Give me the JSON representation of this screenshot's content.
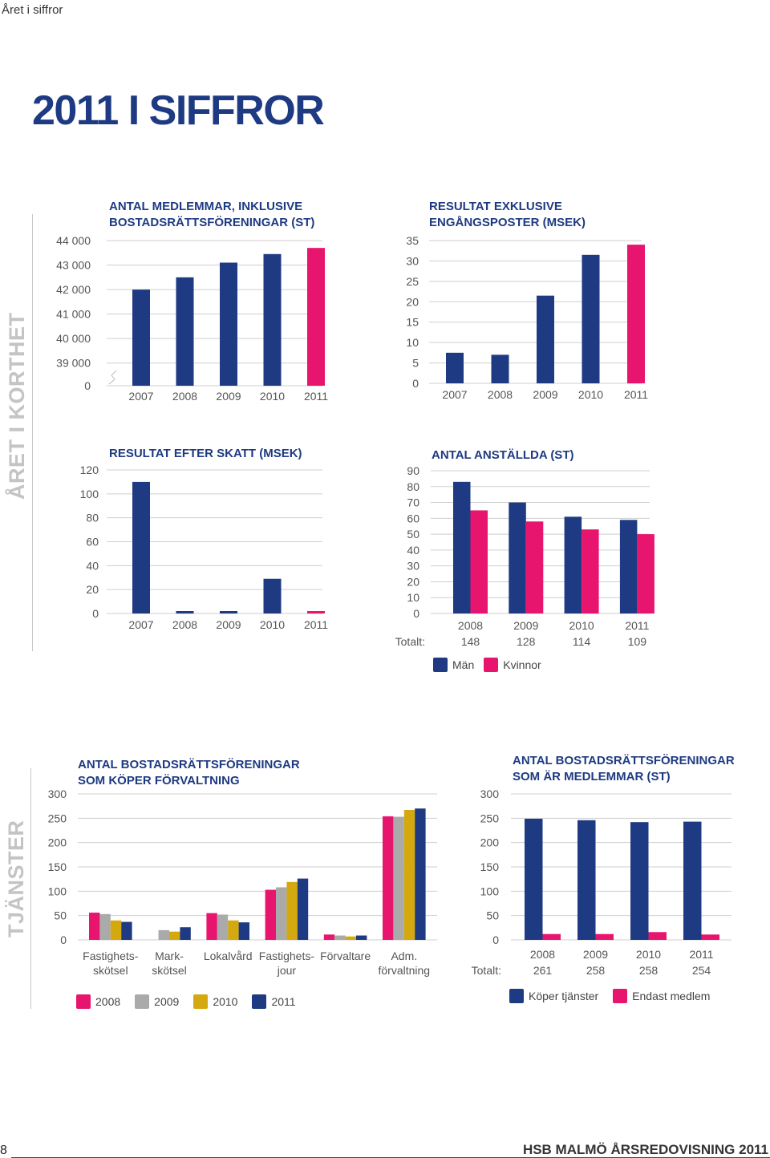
{
  "header": {
    "section": "Året i siffror",
    "title": "2011 I SIFFROR"
  },
  "side_labels": {
    "upper": "ÅRET I KORTHET",
    "lower": "TJÄNSTER"
  },
  "footer": {
    "page_number": "8",
    "text": "HSB MALMÖ ÅRSREDOVISNING 2011"
  },
  "colors": {
    "navy": "#1e3a82",
    "pink": "#e8156e",
    "grey": "#aaaaaa",
    "gold": "#d4a80f"
  },
  "chart_data": [
    {
      "id": "members",
      "type": "bar",
      "title": "ANTAL MEDLEMMAR, INKLUSIVE BOSTADSRÄTTSFÖRENINGAR (ST)",
      "categories": [
        "2007",
        "2008",
        "2009",
        "2010",
        "2011"
      ],
      "values": [
        42000,
        42500,
        43100,
        43450,
        43700
      ],
      "axis_break": true,
      "ylim": [
        38500,
        44000
      ],
      "yticks": [
        39000,
        40000,
        41000,
        42000,
        43000,
        44000
      ],
      "ytick_labels": [
        "0",
        "39 000",
        "40 000",
        "41 000",
        "42 000",
        "43 000",
        "44 000"
      ],
      "highlight_last": true
    },
    {
      "id": "result-excl",
      "type": "bar",
      "title": "RESULTAT EXKLUSIVE ENGÅNGSPOSTER (MSEK)",
      "categories": [
        "2007",
        "2008",
        "2009",
        "2010",
        "2011"
      ],
      "values": [
        7.5,
        7,
        21.5,
        31.5,
        34
      ],
      "ylim": [
        0,
        35
      ],
      "yticks": [
        0,
        5,
        10,
        15,
        20,
        25,
        30,
        35
      ],
      "highlight_last": true
    },
    {
      "id": "result-after-tax",
      "type": "bar",
      "title": "RESULTAT EFTER SKATT (MSEK)",
      "categories": [
        "2007",
        "2008",
        "2009",
        "2010",
        "2011"
      ],
      "values": [
        110,
        2,
        2,
        29,
        2
      ],
      "ylim": [
        0,
        120
      ],
      "yticks": [
        0,
        20,
        40,
        60,
        80,
        100,
        120
      ],
      "highlight_last": true
    },
    {
      "id": "employees",
      "type": "bar",
      "title": "ANTAL ANSTÄLLDA (ST)",
      "categories": [
        "2008",
        "2009",
        "2010",
        "2011"
      ],
      "series": [
        {
          "name": "Män",
          "values": [
            83,
            70,
            61,
            59
          ]
        },
        {
          "name": "Kvinnor",
          "values": [
            65,
            58,
            53,
            50
          ]
        }
      ],
      "totals_label": "Totalt:",
      "totals": [
        "148",
        "128",
        "114",
        "109"
      ],
      "ylim": [
        0,
        90
      ],
      "yticks": [
        0,
        10,
        20,
        30,
        40,
        50,
        60,
        70,
        80,
        90
      ]
    },
    {
      "id": "services",
      "type": "bar",
      "title": "ANTAL BOSTADSRÄTTSFÖRENINGAR SOM KÖPER FÖRVALTNING",
      "categories": [
        [
          "Fastighets-",
          "skötsel"
        ],
        [
          "Mark-",
          "skötsel"
        ],
        [
          "Lokalvård"
        ],
        [
          "Fastighets-",
          "jour"
        ],
        [
          "Förvaltare"
        ],
        [
          "Adm.",
          "förvaltning"
        ]
      ],
      "series": [
        {
          "name": "2008",
          "values": [
            56,
            0,
            55,
            103,
            11,
            254
          ]
        },
        {
          "name": "2009",
          "values": [
            53,
            20,
            52,
            108,
            9,
            253
          ]
        },
        {
          "name": "2010",
          "values": [
            40,
            17,
            40,
            119,
            7,
            267
          ]
        },
        {
          "name": "2011",
          "values": [
            37,
            26,
            36,
            126,
            9,
            270
          ]
        }
      ],
      "ylim": [
        0,
        300
      ],
      "yticks": [
        0,
        50,
        100,
        150,
        200,
        250,
        300
      ]
    },
    {
      "id": "member-associations",
      "type": "bar",
      "title": "ANTAL BOSTADSRÄTTSFÖRENINGAR SOM ÄR MEDLEMMAR (ST)",
      "categories": [
        "2008",
        "2009",
        "2010",
        "2011"
      ],
      "series": [
        {
          "name": "Köper tjänster",
          "values": [
            249,
            246,
            242,
            243
          ]
        },
        {
          "name": "Endast medlem",
          "values": [
            12,
            12,
            16,
            11
          ]
        }
      ],
      "totals_label": "Totalt:",
      "totals": [
        "261",
        "258",
        "258",
        "254"
      ],
      "ylim": [
        0,
        300
      ],
      "yticks": [
        0,
        50,
        100,
        150,
        200,
        250,
        300
      ]
    }
  ]
}
